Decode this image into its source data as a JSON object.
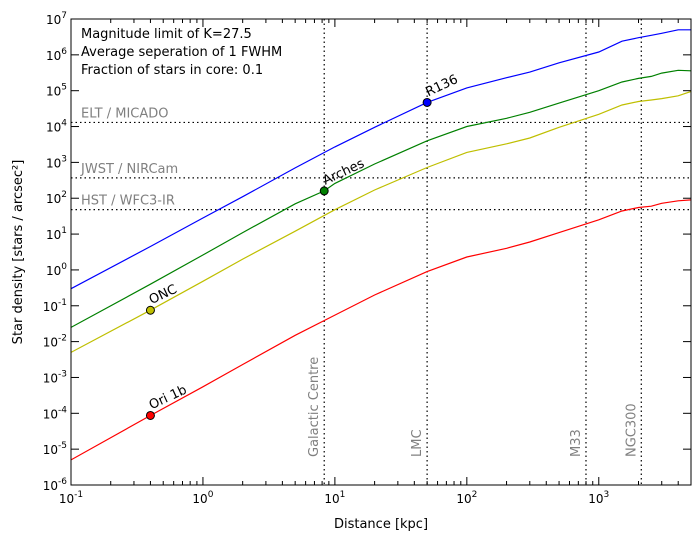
{
  "chart_data": {
    "type": "line",
    "xlabel": "Distance [kpc]",
    "ylabel": "Star density [stars / arcsec²]",
    "xscale": "log",
    "yscale": "log",
    "xlim": [
      0.1,
      5000
    ],
    "ylim": [
      1e-06,
      10000000.0
    ],
    "grid": false,
    "annotations": [
      "Magnitude limit of K=27.5",
      "Average seperation of 1 FWHM",
      "Fraction of stars in core: 0.1"
    ],
    "x_ticks": [
      {
        "base": "10",
        "exp": "-1",
        "value": 0.1
      },
      {
        "base": "10",
        "exp": "0",
        "value": 1
      },
      {
        "base": "10",
        "exp": "1",
        "value": 10
      },
      {
        "base": "10",
        "exp": "2",
        "value": 100
      },
      {
        "base": "10",
        "exp": "3",
        "value": 1000
      }
    ],
    "y_ticks": [
      {
        "base": "10",
        "exp": "-6",
        "value": 1e-06
      },
      {
        "base": "10",
        "exp": "-5",
        "value": 1e-05
      },
      {
        "base": "10",
        "exp": "-4",
        "value": 0.0001
      },
      {
        "base": "10",
        "exp": "-3",
        "value": 0.001
      },
      {
        "base": "10",
        "exp": "-2",
        "value": 0.01
      },
      {
        "base": "10",
        "exp": "-1",
        "value": 0.1
      },
      {
        "base": "10",
        "exp": "0",
        "value": 1
      },
      {
        "base": "10",
        "exp": "1",
        "value": 10
      },
      {
        "base": "10",
        "exp": "2",
        "value": 100
      },
      {
        "base": "10",
        "exp": "3",
        "value": 1000
      },
      {
        "base": "10",
        "exp": "4",
        "value": 10000.0
      },
      {
        "base": "10",
        "exp": "5",
        "value": 100000.0
      },
      {
        "base": "10",
        "exp": "6",
        "value": 1000000.0
      },
      {
        "base": "10",
        "exp": "7",
        "value": 10000000.0
      }
    ],
    "horizontal_lines": [
      {
        "label": "ELT / MICADO",
        "y": 13000
      },
      {
        "label": "JWST / NIRCam",
        "y": 370
      },
      {
        "label": "HST / WFC3-IR",
        "y": 48
      }
    ],
    "vertical_lines": [
      {
        "label": "Galactic Centre",
        "x": 8.3
      },
      {
        "label": "LMC",
        "x": 50
      },
      {
        "label": "M33",
        "x": 800
      },
      {
        "label": "NGC300",
        "x": 2100
      }
    ],
    "points": [
      {
        "label": "R136",
        "x": 50,
        "y": 47000,
        "color": "#0000ff"
      },
      {
        "label": "Arches",
        "x": 8.3,
        "y": 160,
        "color": "#008000"
      },
      {
        "label": "ONC",
        "x": 0.4,
        "y": 0.075,
        "color": "#bfbf00"
      },
      {
        "label": "Ori 1b",
        "x": 0.4,
        "y": 8.7e-05,
        "color": "#ff0000"
      }
    ],
    "series": [
      {
        "color": "#0000ff",
        "x": [
          0.1,
          0.4,
          1,
          2,
          5,
          10,
          20,
          50,
          100,
          200,
          300,
          500,
          1000,
          1500,
          2000,
          2500,
          3000,
          4000,
          5000
        ],
        "y": [
          0.3,
          4.5,
          28,
          110,
          700,
          2700,
          9500,
          47000,
          120000.0,
          230000.0,
          330000.0,
          600000.0,
          1200000.0,
          2400000.0,
          3000000.0,
          3500000.0,
          4000000.0,
          5000000.0,
          5000000.0
        ]
      },
      {
        "color": "#008000",
        "x": [
          0.1,
          0.4,
          1,
          2,
          5,
          8.3,
          10,
          20,
          50,
          100,
          200,
          300,
          500,
          1000,
          1500,
          2000,
          2500,
          3000,
          4000,
          5000
        ],
        "y": [
          0.025,
          0.4,
          2.6,
          11,
          70,
          160,
          260,
          900,
          4000,
          10000,
          17000,
          25000,
          45000,
          100000,
          175000,
          220000,
          250000,
          310000,
          370000,
          360000
        ]
      },
      {
        "color": "#bfbf00",
        "x": [
          0.1,
          0.4,
          1,
          2,
          5,
          10,
          20,
          50,
          100,
          200,
          300,
          500,
          1000,
          1500,
          2000,
          2500,
          3000,
          4000,
          5000
        ],
        "y": [
          0.005,
          0.075,
          0.48,
          2,
          12,
          48,
          170,
          720,
          1900,
          3300,
          4800,
          9500,
          22000,
          40000,
          50000,
          55000,
          60000,
          72000,
          95000
        ]
      },
      {
        "color": "#ff0000",
        "x": [
          0.1,
          0.4,
          1,
          2,
          5,
          10,
          20,
          50,
          100,
          200,
          300,
          500,
          1000,
          1500,
          2000,
          2500,
          3000,
          4000,
          5000
        ],
        "y": [
          5e-06,
          8.7e-05,
          0.00055,
          0.0023,
          0.015,
          0.055,
          0.2,
          0.9,
          2.3,
          4,
          6,
          11,
          25,
          44,
          55,
          60,
          72,
          85,
          90
        ]
      }
    ]
  }
}
